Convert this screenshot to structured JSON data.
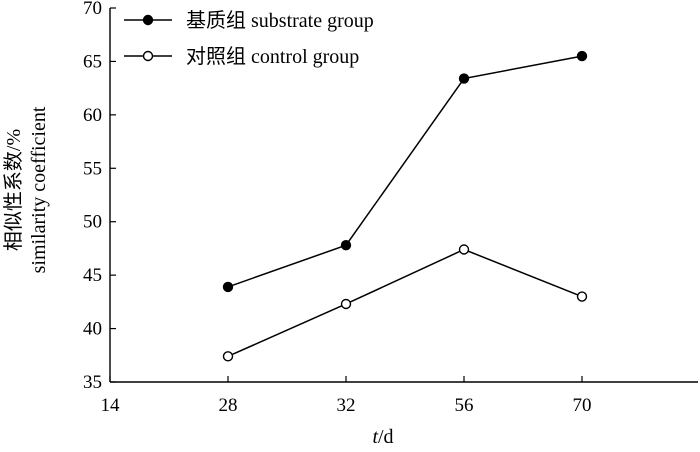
{
  "chart_data": {
    "type": "line",
    "title": "",
    "xlabel": "t/d",
    "xlabel_italic": "t",
    "xlabel_rest": "/d",
    "ylabel_zh": "相似性系数/%",
    "ylabel_en": "similarity coefficient",
    "categories": [
      "14",
      "28",
      "32",
      "56",
      "70"
    ],
    "ylim": [
      35,
      70
    ],
    "yticks": [
      "35",
      "40",
      "45",
      "50",
      "55",
      "60",
      "65",
      "70"
    ],
    "grid": false,
    "legend_position": "top-left",
    "series": [
      {
        "name": "基质组 substrate group",
        "marker": "filled-circle",
        "color": "#000000",
        "x": [
          "28",
          "32",
          "56",
          "70"
        ],
        "values": [
          43.9,
          47.8,
          63.4,
          65.5
        ]
      },
      {
        "name": "对照组 control group",
        "marker": "open-circle",
        "color": "#000000",
        "x": [
          "28",
          "32",
          "56",
          "70"
        ],
        "values": [
          37.4,
          42.3,
          47.4,
          43.0
        ]
      }
    ]
  }
}
